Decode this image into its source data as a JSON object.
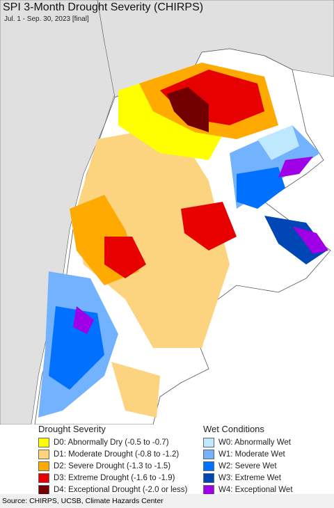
{
  "header": {
    "title": "SPI 3-Month Drought Severity (CHIRPS)",
    "subtitle": "Jul. 1 - Sep. 30, 2023 [final]"
  },
  "legend": {
    "drought": {
      "title": "Drought Severity",
      "items": [
        {
          "label": "D0: Abnormally Dry (-0.5 to -0.7)",
          "color": "#ffff00"
        },
        {
          "label": "D1: Moderate Drought (-0.8 to -1.2)",
          "color": "#fcd37f"
        },
        {
          "label": "D2: Severe Drought (-1.3 to -1.5)",
          "color": "#ffaa00"
        },
        {
          "label": "D3: Extreme Drought (-1.6 to -1.9)",
          "color": "#e60000"
        },
        {
          "label": "D4: Exceptional Drought (-2.0 or less)",
          "color": "#730000"
        }
      ]
    },
    "wet": {
      "title": "Wet Conditions",
      "items": [
        {
          "label": "W0: Abnormally Wet",
          "color": "#bee8ff"
        },
        {
          "label": "W1: Moderate Wet",
          "color": "#73b2ff"
        },
        {
          "label": "W2: Severe Wet",
          "color": "#0070ff"
        },
        {
          "label": "W3: Extreme Wet",
          "color": "#0046b4"
        },
        {
          "label": "W4: Exceptional Wet",
          "color": "#a000e6"
        }
      ]
    }
  },
  "footer": {
    "source": "Source: CHIRPS, UCSB, Climate Hazards Center"
  }
}
